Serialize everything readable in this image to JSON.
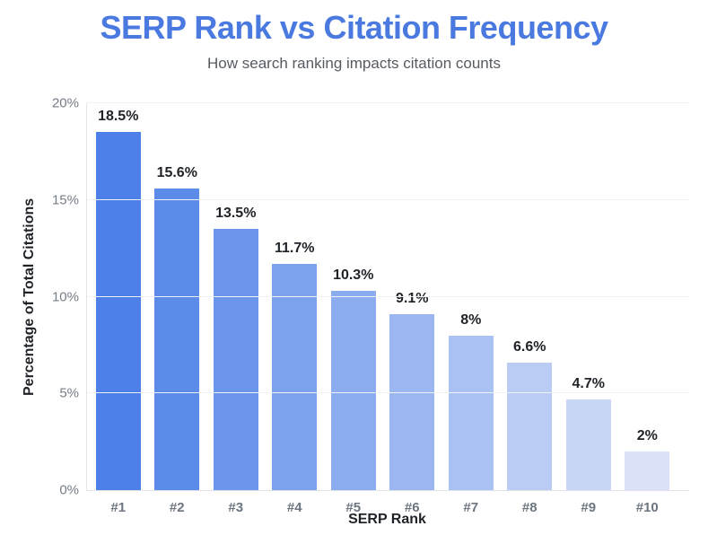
{
  "header": {
    "title": "SERP Rank vs Citation Frequency",
    "subtitle": "How search ranking impacts citation counts"
  },
  "colors": {
    "title": "#4a7ae0",
    "subtitle": "#565b61",
    "axis_line": "#e0e3e7",
    "gridline": "#f1f2f5",
    "y_tick_label": "#767d87",
    "x_tick_label": "#6d7580",
    "value_label": "#1f2328",
    "bar_colors": [
      "#4d80e8",
      "#5d8bea",
      "#6c96ec",
      "#7ca1ed",
      "#8bacef",
      "#9bb6f1",
      "#aac1f3",
      "#baccf4",
      "#c9d7f6",
      "#d9e2f8"
    ]
  },
  "chart_data": {
    "type": "bar",
    "title": "SERP Rank vs Citation Frequency",
    "subtitle": "How search ranking impacts citation counts",
    "categories": [
      "#1",
      "#2",
      "#3",
      "#4",
      "#5",
      "#6",
      "#7",
      "#8",
      "#9",
      "#10"
    ],
    "values": [
      18.5,
      15.6,
      13.5,
      11.7,
      10.3,
      9.1,
      8,
      6.6,
      4.7,
      2
    ],
    "value_labels": [
      "18.5%",
      "15.6%",
      "13.5%",
      "11.7%",
      "10.3%",
      "9.1%",
      "8%",
      "6.6%",
      "4.7%",
      "2%"
    ],
    "xlabel": "SERP Rank",
    "ylabel": "Percentage of Total Citations",
    "ylim": [
      0,
      20
    ],
    "yticks": [
      0,
      5,
      10,
      15,
      20
    ],
    "ytick_labels": [
      "0%",
      "5%",
      "10%",
      "15%",
      "20%"
    ],
    "grid": true,
    "legend": false
  }
}
